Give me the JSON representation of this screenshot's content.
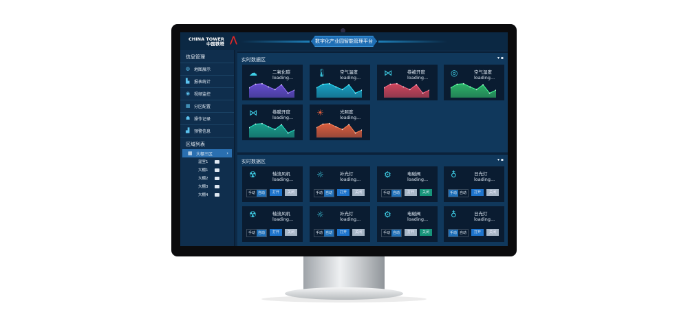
{
  "header": {
    "logo_en": "CHINA TOWER",
    "logo_cn": "中国铁塔",
    "title": "数字化产业园智能管理平台"
  },
  "sidebar": {
    "section1": "信息管理",
    "items": [
      {
        "label": "地图展示",
        "icon": "globe-icon"
      },
      {
        "label": "报表统计",
        "icon": "bar-chart-icon"
      },
      {
        "label": "视频监控",
        "icon": "camera-icon"
      },
      {
        "label": "分区配置",
        "icon": "grid-icon"
      },
      {
        "label": "操作记录",
        "icon": "record-icon"
      },
      {
        "label": "预警信息",
        "icon": "alert-icon"
      }
    ],
    "section2": "区域列表",
    "zone": "大棚三区",
    "subs": [
      "温室1",
      "大棚1",
      "大棚2",
      "大棚3",
      "大棚4"
    ]
  },
  "panel1": {
    "title": "实时数据区",
    "cards": [
      {
        "name": "二氧化碳",
        "value": "loading...",
        "icon": "co2-cloud-icon",
        "color": "#6a4fd6"
      },
      {
        "name": "空气温度",
        "value": "loading...",
        "icon": "thermometer-icon",
        "color": "#1aa6c9"
      },
      {
        "name": "卷被开度",
        "value": "loading...",
        "icon": "roller-icon",
        "color": "#d8485e"
      },
      {
        "name": "空气湿度",
        "value": "loading...",
        "icon": "humidity-icon",
        "color": "#2fb86a"
      },
      {
        "name": "卷膜开度",
        "value": "loading...",
        "icon": "roller-icon",
        "color": "#1ba590"
      },
      {
        "name": "光照度",
        "value": "loading...",
        "icon": "sun-icon",
        "color": "#e5603e"
      }
    ],
    "sparkline": [
      55,
      75,
      78,
      60,
      45,
      72,
      25,
      42
    ]
  },
  "panel2": {
    "title": "实时数据区",
    "manual": "手动",
    "auto": "自动",
    "open": "打开",
    "close": "关闭",
    "devices": [
      {
        "name": "轴流风机",
        "value": "loading...",
        "icon": "fan-icon",
        "mode": "auto",
        "state": "open"
      },
      {
        "name": "补光灯",
        "value": "loading...",
        "icon": "bulb-icon",
        "mode": "auto",
        "state": "open"
      },
      {
        "name": "电磁阀",
        "value": "loading...",
        "icon": "valve-icon",
        "mode": "auto",
        "state": "close"
      },
      {
        "name": "日光灯",
        "value": "loading...",
        "icon": "lamp-icon",
        "mode": "manual",
        "state": "open"
      },
      {
        "name": "轴流风机",
        "value": "loading...",
        "icon": "fan-icon",
        "mode": "auto",
        "state": "open"
      },
      {
        "name": "补光灯",
        "value": "loading...",
        "icon": "bulb-icon",
        "mode": "auto",
        "state": "open"
      },
      {
        "name": "电磁阀",
        "value": "loading...",
        "icon": "valve-icon",
        "mode": "auto",
        "state": "close"
      },
      {
        "name": "日光灯",
        "value": "loading...",
        "icon": "lamp-icon",
        "mode": "manual",
        "state": "open"
      }
    ]
  }
}
